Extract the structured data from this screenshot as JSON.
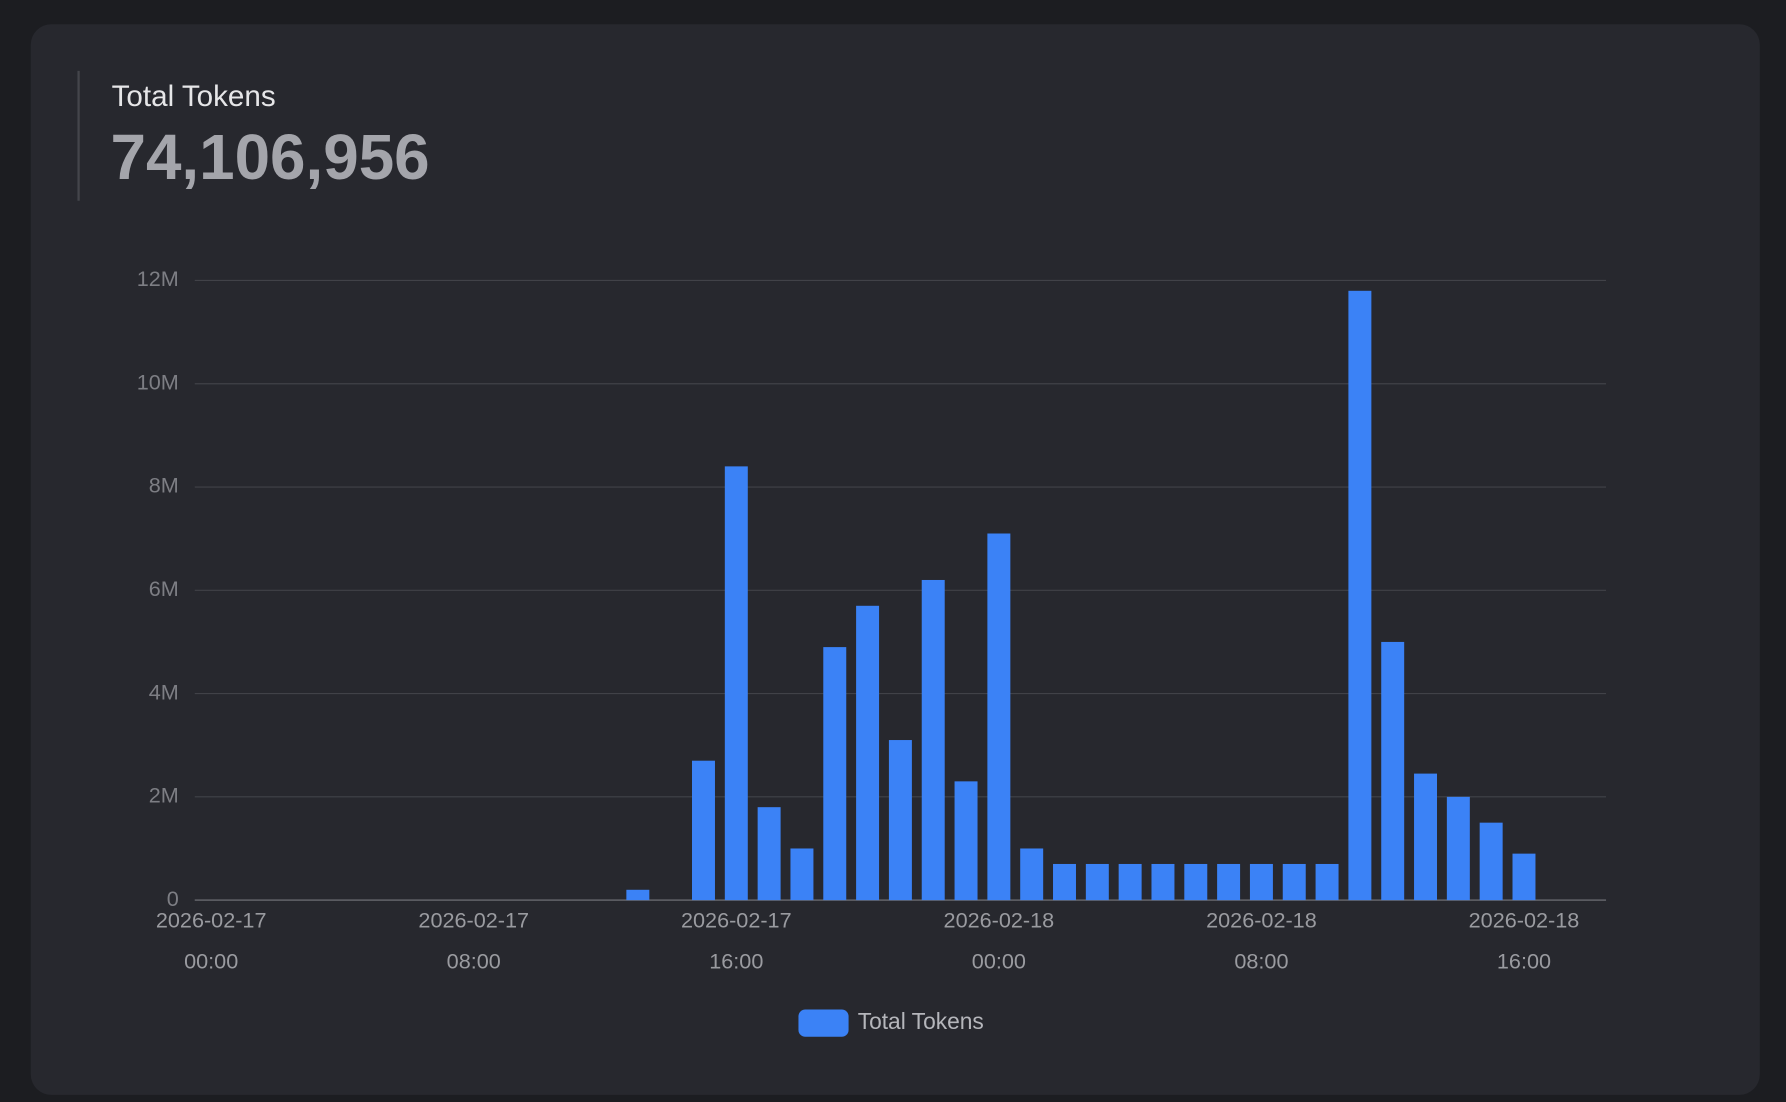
{
  "summary": {
    "label": "Total Tokens",
    "value": "74,106,956"
  },
  "chart_data": {
    "type": "bar",
    "categories": [
      [
        "2026-02-17",
        "00:00"
      ],
      null,
      null,
      null,
      null,
      null,
      null,
      null,
      [
        "2026-02-17",
        "08:00"
      ],
      null,
      null,
      null,
      null,
      null,
      null,
      null,
      [
        "2026-02-17",
        "16:00"
      ],
      null,
      null,
      null,
      null,
      null,
      null,
      null,
      [
        "2026-02-18",
        "00:00"
      ],
      null,
      null,
      null,
      null,
      null,
      null,
      null,
      [
        "2026-02-18",
        "08:00"
      ],
      null,
      null,
      null,
      null,
      null,
      null,
      null,
      [
        "2026-02-18",
        "16:00"
      ],
      null,
      null
    ],
    "series": [
      {
        "name": "Total Tokens",
        "color": "#3b82f6",
        "values": [
          0,
          0,
          0,
          0,
          0,
          0,
          0,
          0,
          0,
          0,
          0,
          0,
          0,
          200000,
          0,
          2700000,
          8400000,
          1800000,
          1000000,
          4900000,
          5700000,
          3100000,
          6200000,
          2300000,
          7100000,
          1000000,
          700000,
          700000,
          700000,
          700000,
          700000,
          700000,
          700000,
          700000,
          700000,
          11800000,
          5000000,
          2450000,
          2000000,
          1500000,
          900000,
          0,
          0
        ]
      }
    ],
    "ylim": [
      0,
      12000000
    ],
    "yticks": [
      0,
      {
        "value": 2000000,
        "label": "2M"
      },
      {
        "value": 4000000,
        "label": "4M"
      },
      {
        "value": 6000000,
        "label": "6M"
      },
      {
        "value": 8000000,
        "label": "8M"
      },
      {
        "value": 10000000,
        "label": "10M"
      },
      {
        "value": 12000000,
        "label": "12M"
      }
    ],
    "grid": true,
    "legend": "bottom"
  }
}
